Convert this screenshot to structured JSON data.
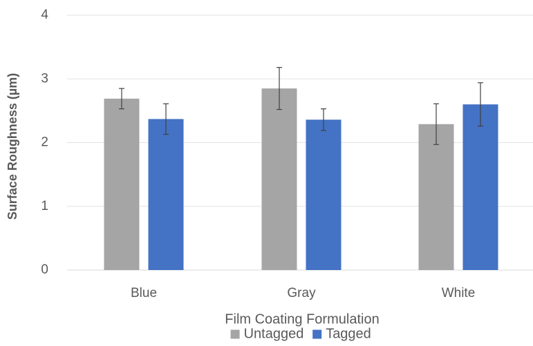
{
  "chart_data": {
    "type": "bar",
    "title": "",
    "xlabel": "Film Coating Formulation",
    "ylabel": "Surface Roughness (µm)",
    "categories": [
      "Blue",
      "Gray",
      "White"
    ],
    "ylim": [
      0,
      4
    ],
    "yticks": [
      0,
      1,
      2,
      3,
      4
    ],
    "grid": true,
    "legend_position": "bottom",
    "series": [
      {
        "name": "Untagged",
        "color": "#a5a5a5",
        "values": [
          2.69,
          2.85,
          2.29
        ],
        "error": [
          0.16,
          0.33,
          0.32
        ]
      },
      {
        "name": "Tagged",
        "color": "#4472c4",
        "values": [
          2.37,
          2.36,
          2.6
        ],
        "error": [
          0.24,
          0.17,
          0.34
        ]
      }
    ]
  }
}
